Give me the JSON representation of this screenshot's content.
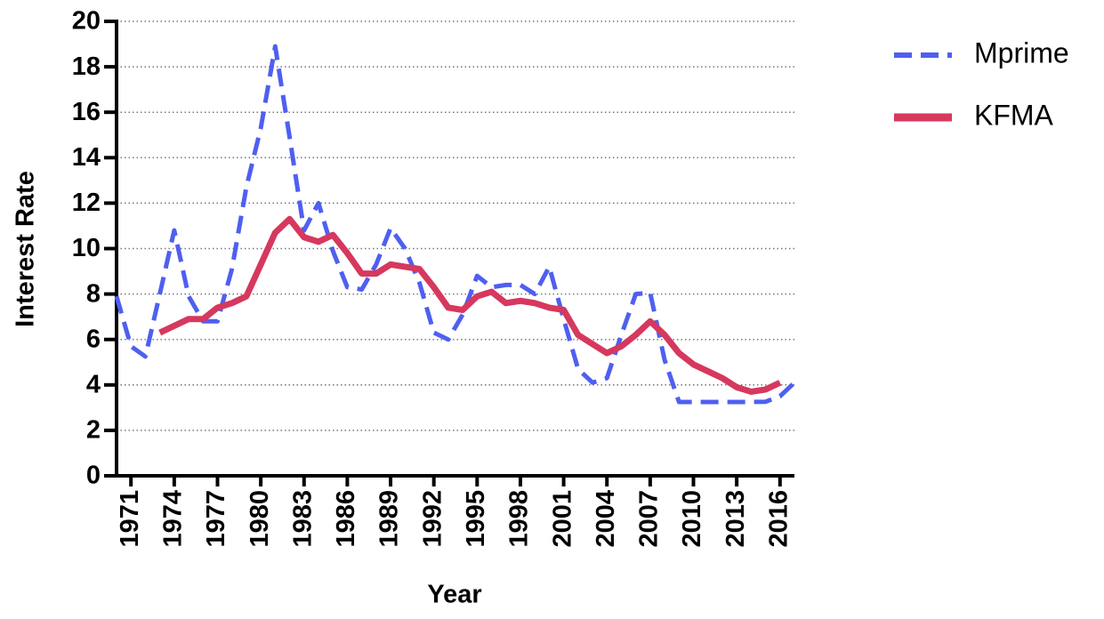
{
  "chart_data": {
    "type": "line",
    "x_label": "Year",
    "y_label": "Interest Rate",
    "x": [
      1970,
      1971,
      1972,
      1973,
      1974,
      1975,
      1976,
      1977,
      1978,
      1979,
      1980,
      1981,
      1982,
      1983,
      1984,
      1985,
      1986,
      1987,
      1988,
      1989,
      1990,
      1991,
      1992,
      1993,
      1994,
      1995,
      1996,
      1997,
      1998,
      1999,
      2000,
      2001,
      2002,
      2003,
      2004,
      2005,
      2006,
      2007,
      2008,
      2009,
      2010,
      2011,
      2012,
      2013,
      2014,
      2015,
      2016,
      2017
    ],
    "series": [
      {
        "name": "Mprime",
        "color": "#4f5ff0",
        "dash": true,
        "values": [
          7.9,
          5.7,
          5.25,
          8.0,
          10.8,
          7.9,
          6.8,
          6.8,
          9.1,
          12.7,
          15.3,
          18.9,
          14.9,
          10.8,
          12.0,
          9.9,
          8.3,
          8.2,
          9.3,
          10.9,
          10.0,
          8.5,
          6.3,
          6.0,
          7.1,
          8.8,
          8.3,
          8.4,
          8.4,
          8.0,
          9.2,
          6.9,
          4.7,
          4.1,
          4.3,
          6.2,
          8.0,
          8.05,
          5.1,
          3.25,
          3.25,
          3.25,
          3.25,
          3.25,
          3.25,
          3.26,
          3.5,
          4.1
        ]
      },
      {
        "name": "KFMA",
        "color": "#d6385e",
        "dash": false,
        "values": [
          null,
          null,
          null,
          6.3,
          6.6,
          6.9,
          6.9,
          7.4,
          7.6,
          7.9,
          9.3,
          10.7,
          11.3,
          10.5,
          10.3,
          10.6,
          9.8,
          8.9,
          8.9,
          9.3,
          9.2,
          9.1,
          8.3,
          7.4,
          7.3,
          7.9,
          8.1,
          7.6,
          7.7,
          7.6,
          7.4,
          7.3,
          6.2,
          5.8,
          5.4,
          5.7,
          6.2,
          6.8,
          6.2,
          5.4,
          4.9,
          4.6,
          4.3,
          3.9,
          3.7,
          3.8,
          4.1,
          null
        ]
      }
    ],
    "xlim": [
      1970,
      2017
    ],
    "xticks": [
      1971,
      1974,
      1977,
      1980,
      1983,
      1986,
      1989,
      1992,
      1995,
      1998,
      2001,
      2004,
      2007,
      2010,
      2013,
      2016
    ],
    "ylim": [
      0,
      20
    ],
    "yticks": [
      0,
      2,
      4,
      6,
      8,
      10,
      12,
      14,
      16,
      18,
      20
    ],
    "grid": true,
    "legend": "right"
  }
}
